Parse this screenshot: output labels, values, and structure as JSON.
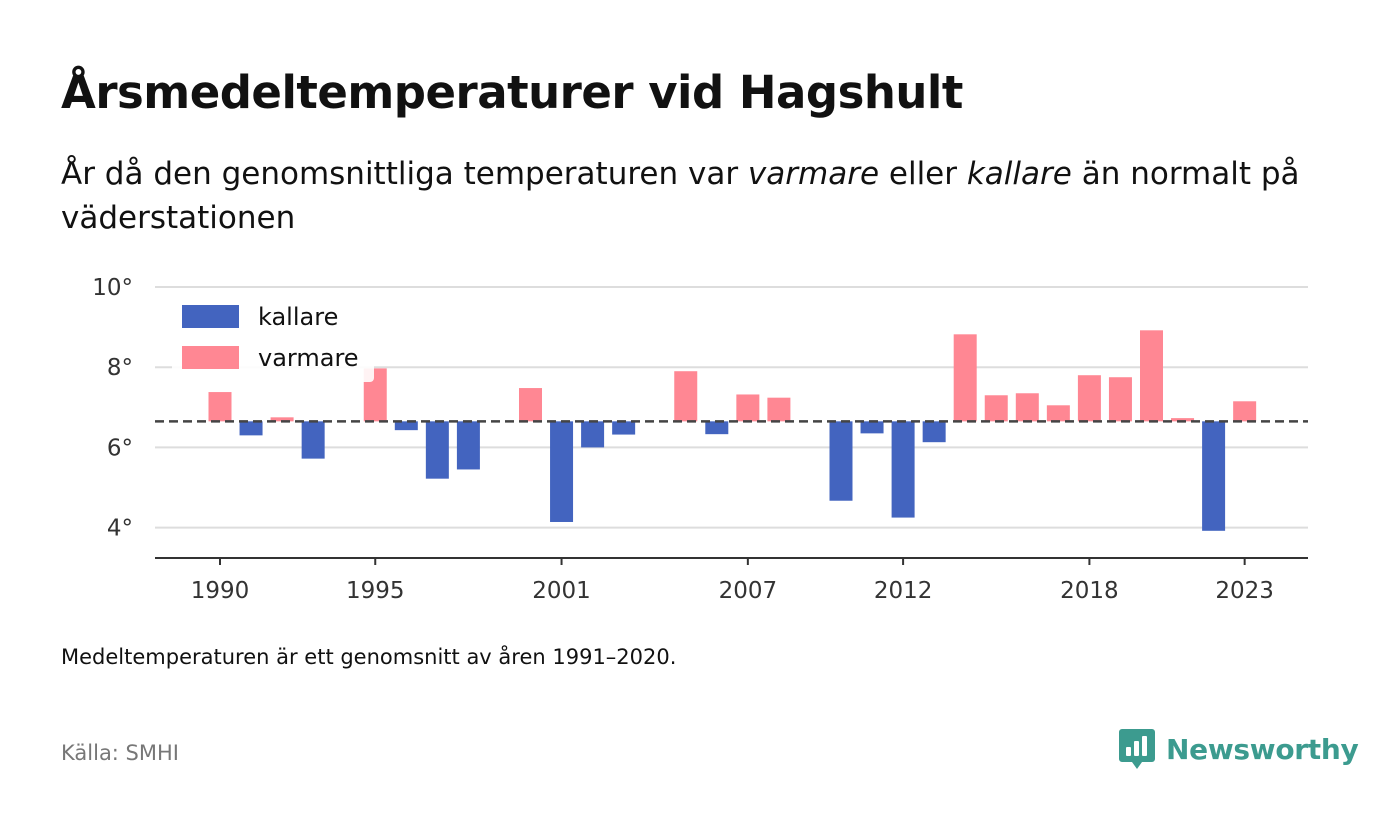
{
  "header": {
    "title": "Årsmedeltemperaturer vid Hagshult",
    "subtitle_1": "År då den genomsnittliga temperaturen var ",
    "subtitle_warm": "varmare",
    "subtitle_2": " eller ",
    "subtitle_cold": "kallare",
    "subtitle_3": " än normalt på väderstationen"
  },
  "footer": {
    "note": "Medeltemperaturen är ett genomsnitt av åren 1991–2020.",
    "source": "Källa: SMHI",
    "brand": "Newsworthy"
  },
  "colors": {
    "warm": "#ff8793",
    "cold": "#4364bf",
    "brand": "#3c9b8f",
    "grid": "#dddddd",
    "baseline": "#444444"
  },
  "chart_data": {
    "type": "bar",
    "title": "Årsmedeltemperaturer vid Hagshult",
    "baseline": 6.65,
    "ylim": [
      3.3,
      10.3
    ],
    "yticks": [
      4,
      6,
      8,
      10
    ],
    "ytick_suffix": "°",
    "xticks": [
      1990,
      1995,
      2001,
      2007,
      2012,
      2018,
      2023
    ],
    "grid": true,
    "legend": {
      "position": "top-left",
      "items": [
        {
          "label": "kallare",
          "color": "#4364bf"
        },
        {
          "label": "varmare",
          "color": "#ff8793"
        }
      ]
    },
    "categories": [
      1990,
      1991,
      1992,
      1993,
      1994,
      1995,
      1996,
      1997,
      1998,
      1999,
      2000,
      2001,
      2002,
      2003,
      2004,
      2005,
      2006,
      2007,
      2008,
      2009,
      2010,
      2011,
      2012,
      2013,
      2014,
      2015,
      2016,
      2017,
      2018,
      2019,
      2020,
      2021,
      2022,
      2023
    ],
    "values": [
      7.38,
      6.3,
      6.75,
      5.72,
      null,
      7.97,
      6.43,
      5.22,
      5.45,
      null,
      7.48,
      4.14,
      6.0,
      6.32,
      null,
      7.9,
      6.33,
      7.32,
      7.24,
      null,
      4.67,
      6.35,
      4.25,
      6.13,
      8.82,
      7.3,
      7.35,
      7.05,
      7.8,
      7.75,
      8.92,
      6.73,
      3.92,
      7.15
    ]
  }
}
